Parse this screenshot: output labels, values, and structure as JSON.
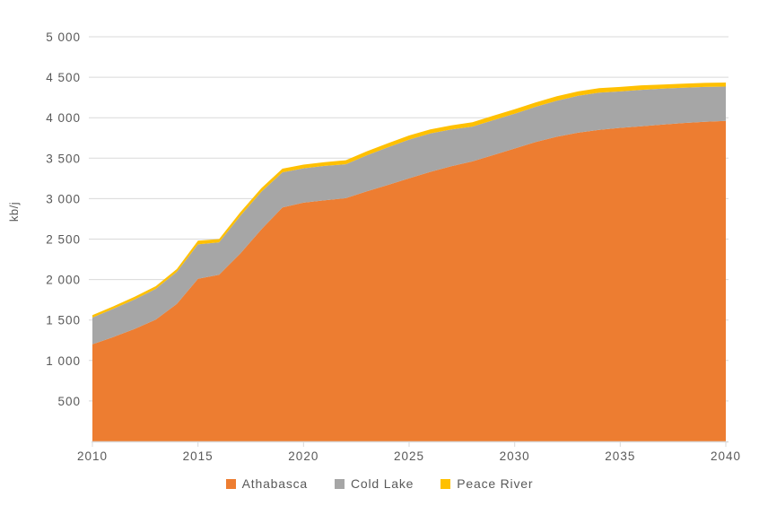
{
  "page": {
    "background": "#FFFFFF"
  },
  "chart_data": {
    "type": "area",
    "stacked": true,
    "title": "",
    "xlabel": "",
    "ylabel": "kb/j",
    "grid": true,
    "legend_position": "bottom",
    "ylim": [
      0,
      5000
    ],
    "x": [
      2010,
      2011,
      2012,
      2013,
      2014,
      2015,
      2016,
      2017,
      2018,
      2019,
      2020,
      2021,
      2022,
      2023,
      2024,
      2025,
      2026,
      2027,
      2028,
      2029,
      2030,
      2031,
      2032,
      2033,
      2034,
      2035,
      2036,
      2037,
      2038,
      2039,
      2040
    ],
    "series": [
      {
        "name": "Athabasca",
        "color": "#ED7D31",
        "values": [
          1200,
          1290,
          1390,
          1505,
          1700,
          2010,
          2060,
          2320,
          2620,
          2890,
          2950,
          2980,
          3005,
          3090,
          3170,
          3250,
          3330,
          3400,
          3460,
          3540,
          3620,
          3700,
          3765,
          3815,
          3850,
          3875,
          3895,
          3915,
          3935,
          3950,
          3960
        ]
      },
      {
        "name": "Cold Lake",
        "color": "#A6A6A6",
        "values": [
          330,
          350,
          365,
          380,
          395,
          425,
          400,
          465,
          465,
          435,
          425,
          425,
          420,
          445,
          465,
          480,
          475,
          455,
          430,
          430,
          430,
          435,
          445,
          455,
          460,
          450,
          450,
          445,
          435,
          430,
          425
        ]
      },
      {
        "name": "Peace River",
        "color": "#FFC000",
        "values": [
          30,
          30,
          32,
          33,
          35,
          45,
          40,
          45,
          45,
          45,
          45,
          45,
          50,
          50,
          50,
          50,
          50,
          50,
          55,
          55,
          55,
          55,
          55,
          55,
          55,
          55,
          55,
          50,
          50,
          50,
          50
        ]
      }
    ],
    "y_ticks": [
      500,
      1000,
      1500,
      2000,
      2500,
      3000,
      3500,
      4000,
      4500,
      5000
    ],
    "y_tick_labels": [
      "500",
      "1 000",
      "1 500",
      "2 000",
      "2 500",
      "3 000",
      "3 500",
      "4 000",
      "4 500",
      "5 000"
    ],
    "x_ticks": [
      2010,
      2015,
      2020,
      2025,
      2030,
      2035,
      2040
    ],
    "x_tick_labels": [
      "2010",
      "2015",
      "2020",
      "2025",
      "2030",
      "2035",
      "2040"
    ],
    "grid_color": "#D9D9D9",
    "axis_color": "#D9D9D9",
    "tick_label_color": "#595959"
  }
}
